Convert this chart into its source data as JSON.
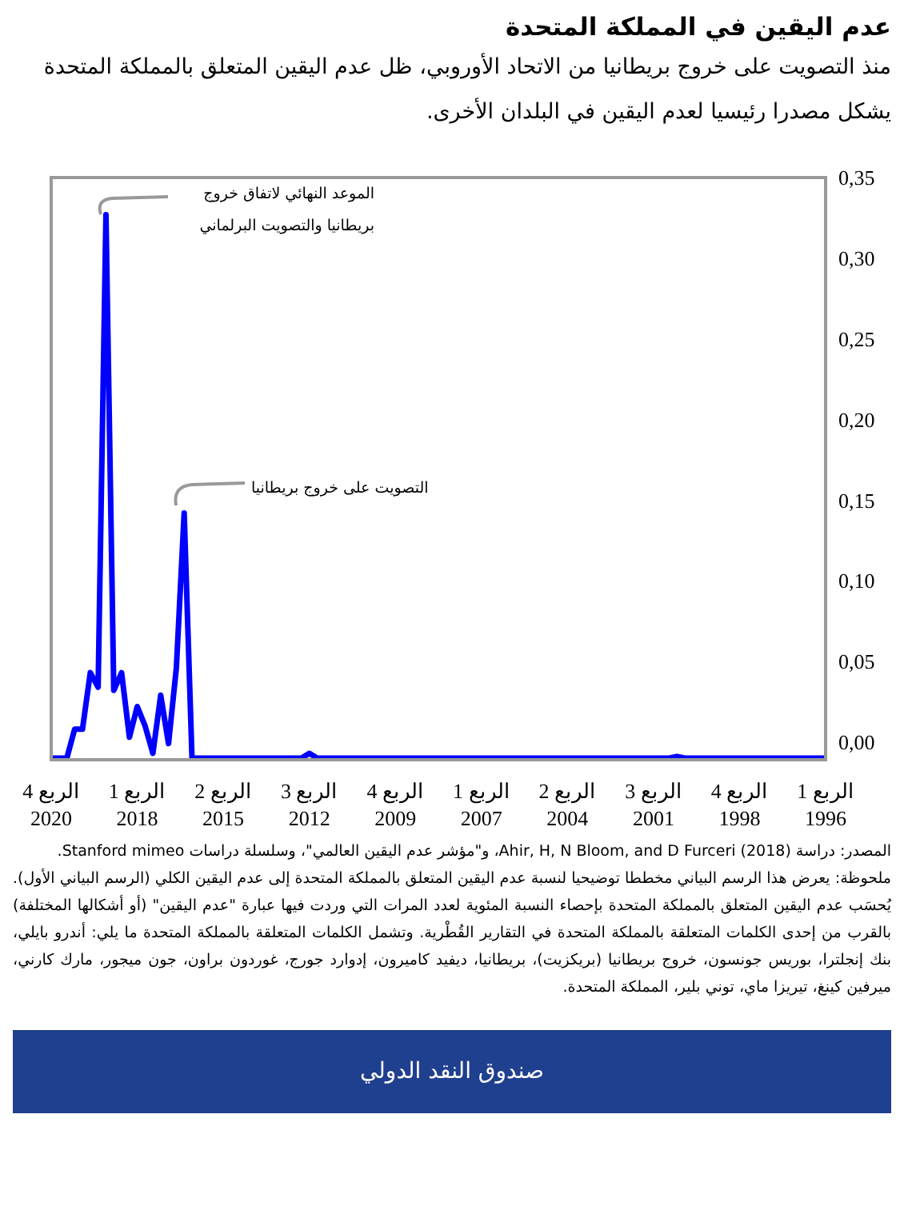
{
  "chart_data": {
    "type": "line",
    "title": "عدم اليقين في المملكة المتحدة",
    "subtitle": "منذ التصويت على خروج بريطانيا من الاتحاد الأوروبي، ظل عدم اليقين المتعلق بالمملكة المتحدة يشكل مصدرا رئيسيا لعدم اليقين في البلدان الأخرى.",
    "categories": [
      "الربع 4\n2020",
      null,
      null,
      null,
      null,
      null,
      null,
      null,
      null,
      null,
      null,
      "الربع 1\n2018",
      null,
      null,
      null,
      null,
      null,
      null,
      null,
      null,
      null,
      null,
      "الربع 2\n2015",
      null,
      null,
      null,
      null,
      null,
      null,
      null,
      null,
      null,
      null,
      "الربع 3\n2012",
      null,
      null,
      null,
      null,
      null,
      null,
      null,
      null,
      null,
      null,
      "الربع 4\n2009",
      null,
      null,
      null,
      null,
      null,
      null,
      null,
      null,
      null,
      null,
      "الربع 1\n2007",
      null,
      null,
      null,
      null,
      null,
      null,
      null,
      null,
      null,
      null,
      "الربع 2\n2004",
      null,
      null,
      null,
      null,
      null,
      null,
      null,
      null,
      null,
      null,
      "الربع 3\n2001",
      null,
      null,
      null,
      null,
      null,
      null,
      null,
      null,
      null,
      null,
      "الربع 4\n1998",
      null,
      null,
      null,
      null,
      null,
      null,
      null,
      null,
      null,
      null,
      "الربع 1\n1996"
    ],
    "series": [
      {
        "color": "#0000ff",
        "values": [
          -0.01,
          -0.01,
          -0.01,
          0.008,
          0.008,
          0.043,
          0.034,
          0.327,
          0.032,
          0.043,
          0.003,
          0.022,
          0.01,
          -0.007,
          0.029,
          -0.001,
          0.046,
          0.142,
          -0.01,
          -0.01,
          -0.01,
          -0.01,
          -0.01,
          -0.01,
          -0.01,
          -0.01,
          -0.01,
          -0.01,
          -0.01,
          -0.01,
          -0.01,
          -0.01,
          -0.01,
          -0.007,
          -0.01,
          -0.01,
          -0.01,
          -0.01,
          -0.01,
          -0.01,
          -0.01,
          -0.01,
          -0.01,
          -0.01,
          -0.01,
          -0.01,
          -0.01,
          -0.01,
          -0.01,
          -0.01,
          -0.01,
          -0.01,
          -0.01,
          -0.01,
          -0.01,
          -0.01,
          -0.01,
          -0.01,
          -0.01,
          -0.01,
          -0.01,
          -0.01,
          -0.01,
          -0.01,
          -0.01,
          -0.01,
          -0.01,
          -0.01,
          -0.01,
          -0.01,
          -0.01,
          -0.01,
          -0.01,
          -0.01,
          -0.01,
          -0.01,
          -0.01,
          -0.01,
          -0.01,
          -0.01,
          -0.009,
          -0.01,
          -0.01,
          -0.01,
          -0.01,
          -0.01,
          -0.01,
          -0.01,
          -0.01,
          -0.01,
          -0.01,
          -0.01,
          -0.01,
          -0.01,
          -0.01,
          -0.01,
          -0.01,
          -0.01,
          -0.01,
          -0.01
        ]
      }
    ],
    "ylim": [
      -0.011,
      0.35
    ],
    "yticks": [
      {
        "value": 0,
        "label": "0,00"
      },
      {
        "value": 0.05,
        "label": "0,05"
      },
      {
        "value": 0.1,
        "label": "0,10"
      },
      {
        "value": 0.15,
        "label": "0,15"
      },
      {
        "value": 0.2,
        "label": "0,20"
      },
      {
        "value": 0.25,
        "label": "0,25"
      },
      {
        "value": 0.3,
        "label": "0,30"
      },
      {
        "value": 0.35,
        "label": "0,35"
      }
    ],
    "grid": false,
    "legend": false,
    "marker": "none",
    "line_style": "solid",
    "annotations": [
      "الموعد النهائي لاتفاق خروج بريطانيا والتصويت البرلماني",
      "التصويت على خروج بريطانيا",
      "المصدر: دراسة Ahir, H, N Bloom, and D Furceri (2018)، و\"مؤشر عدم اليقين العالمي\"، وسلسلة دراسات Stanford mimeo.",
      "ملحوظة: يعرض هذا الرسم البياني مخططا توضيحيا لنسبة عدم اليقين المتعلق بالمملكة المتحدة إلى عدم اليقين الكلي (الرسم البياني الأول). يُحسَب عدم اليقين المتعلق بالمملكة المتحدة بإحصاء النسبة المئوية لعدد المرات التي وردت فيها عبارة \"عدم اليقين\" (أو أشكالها المختلفة) بالقرب من إحدى الكلمات المتعلقة بالمملكة المتحدة في التقارير القُطْرية. وتشمل الكلمات المتعلقة بالمملكة المتحدة ما يلي: أندرو بايلي، بنك إنجلترا، بوريس جونسون، خروج بريطانيا (بريكزيت)، بريطانيا، ديفيد كاميرون، إدوارد جورج، غوردون براون، جون ميجور، مارك كارني، ميرفين كينغ، تيريزا ماي، توني بلير، المملكة المتحدة.",
      "صندوق النقد الدولي"
    ]
  }
}
